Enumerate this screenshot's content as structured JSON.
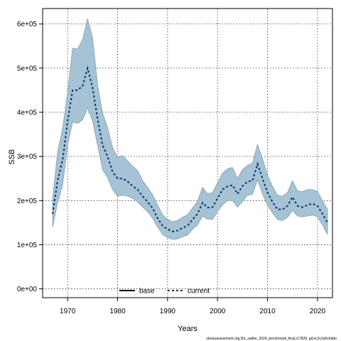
{
  "chart_data": {
    "type": "line",
    "xlabel": "Years",
    "ylabel": "SSB",
    "xlim": [
      1965,
      2023
    ],
    "ylim": [
      -20000,
      635000
    ],
    "x_ticks": [
      1970,
      1980,
      1990,
      2000,
      2010,
      2020
    ],
    "x_tick_labels": [
      "1970",
      "1980",
      "1990",
      "2000",
      "2010",
      "2020"
    ],
    "y_ticks": [
      0,
      100000,
      200000,
      300000,
      400000,
      500000,
      600000
    ],
    "y_tick_labels": [
      "0e+00",
      "1e+05",
      "2e+05",
      "3e+05",
      "4e+05",
      "5e+05",
      "6e+05"
    ],
    "grid": true,
    "legend_position": "bottom-center",
    "footnote": "stockassessment.org,NS_saithe_2024_benchmark_final,r17829, git:ec2c2a0c6dde",
    "colors": {
      "band": "#a5c3d4",
      "band_edge": "#8a9ba6",
      "current": "#08306b",
      "base": "#000000"
    },
    "series": [
      {
        "name": "base",
        "style": "solid",
        "x": [],
        "values": []
      },
      {
        "name": "current",
        "style": "dashed",
        "x": [
          1967,
          1968,
          1969,
          1970,
          1971,
          1972,
          1973,
          1974,
          1975,
          1976,
          1977,
          1978,
          1979,
          1980,
          1981,
          1982,
          1983,
          1984,
          1985,
          1986,
          1987,
          1988,
          1989,
          1990,
          1991,
          1992,
          1993,
          1994,
          1995,
          1996,
          1997,
          1998,
          1999,
          2000,
          2001,
          2002,
          2003,
          2004,
          2005,
          2006,
          2007,
          2008,
          2009,
          2010,
          2011,
          2012,
          2013,
          2014,
          2015,
          2016,
          2017,
          2018,
          2019,
          2020,
          2021,
          2022
        ],
        "values": [
          170000,
          245000,
          292000,
          380000,
          450000,
          450000,
          460000,
          500000,
          455000,
          385000,
          325000,
          300000,
          265000,
          250000,
          250000,
          243000,
          233000,
          225000,
          210000,
          197000,
          183000,
          160000,
          143000,
          135000,
          130000,
          132000,
          138000,
          143000,
          157000,
          170000,
          195000,
          184000,
          185000,
          205000,
          225000,
          232000,
          235000,
          215000,
          233000,
          243000,
          245000,
          283000,
          250000,
          218000,
          197000,
          180000,
          180000,
          188000,
          208000,
          188000,
          185000,
          190000,
          193000,
          188000,
          170000,
          150000
        ],
        "lower": [
          140000,
          195000,
          235000,
          325000,
          378000,
          375000,
          383000,
          410000,
          380000,
          325000,
          270000,
          252000,
          225000,
          210000,
          212000,
          210000,
          205000,
          197000,
          185000,
          175000,
          160000,
          140000,
          123000,
          116000,
          112000,
          113000,
          118000,
          122000,
          135000,
          145000,
          165000,
          158000,
          157000,
          175000,
          190000,
          200000,
          200000,
          185000,
          198000,
          212000,
          214000,
          247000,
          215000,
          190000,
          172000,
          157000,
          155000,
          162000,
          178000,
          165000,
          163000,
          165000,
          167000,
          163000,
          145000,
          123000
        ],
        "upper": [
          205000,
          310000,
          363000,
          445000,
          545000,
          543000,
          565000,
          612000,
          568000,
          462000,
          398000,
          365000,
          320000,
          298000,
          302000,
          290000,
          278000,
          268000,
          245000,
          230000,
          213000,
          190000,
          168000,
          157000,
          152000,
          155000,
          162000,
          168000,
          183000,
          198000,
          230000,
          215000,
          218000,
          240000,
          262000,
          272000,
          275000,
          250000,
          270000,
          280000,
          285000,
          327000,
          295000,
          257000,
          232000,
          212000,
          210000,
          218000,
          245000,
          222000,
          220000,
          225000,
          225000,
          220000,
          200000,
          180000
        ]
      }
    ]
  }
}
